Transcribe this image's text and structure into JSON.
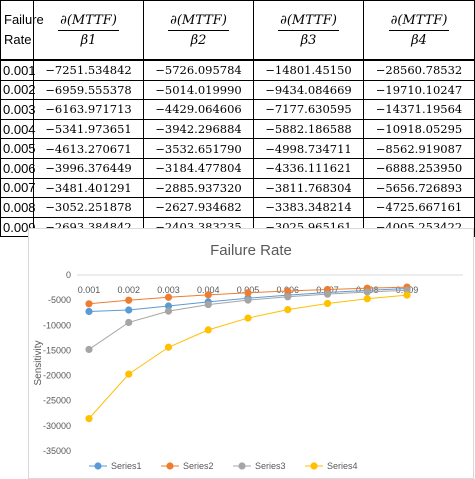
{
  "table": {
    "headers": {
      "rate_line1": "Failure",
      "rate_line2": "Rate",
      "sens": [
        {
          "numerator": "∂(MTTF)",
          "denominator": "β1"
        },
        {
          "numerator": "∂(MTTF)",
          "denominator": "β2"
        },
        {
          "numerator": "∂(MTTF)",
          "denominator": "β3"
        },
        {
          "numerator": "∂(MTTF)",
          "denominator": "β4"
        }
      ]
    },
    "rows": [
      [
        "0.001",
        "−7251.534842",
        "−5726.095784",
        "−14801.45150",
        "−28560.78532"
      ],
      [
        "0.002",
        "−6959.555378",
        "−5014.019990",
        "−9434.084669",
        "−19710.10247"
      ],
      [
        "0.003",
        "−6163.971713",
        "−4429.064606",
        "−7177.630595",
        "−14371.19564"
      ],
      [
        "0.004",
        "−5341.973651",
        "−3942.296884",
        "−5882.186588",
        "−10918.05295"
      ],
      [
        "0.005",
        "−4613.270671",
        "−3532.651790",
        "−4998.734711",
        "−8562.919087"
      ],
      [
        "0.006",
        "−3996.376449",
        "−3184.477804",
        "−4336.111621",
        "−6888.253950"
      ],
      [
        "0.007",
        "−3481.401291",
        "−2885.937320",
        "−3811.768304",
        "−5656.726893"
      ],
      [
        "0.008",
        "−3052.251878",
        "−2627.934682",
        "−3383.348214",
        "−4725.667161"
      ],
      [
        "0.009",
        "−2693.384842",
        "−2403.383235",
        "−3025.965161",
        "−4005.253422"
      ]
    ]
  },
  "chart_data": {
    "type": "line",
    "title": "Failure Rate",
    "xlabel": "",
    "ylabel": "Sensitivity",
    "categories": [
      "0.001",
      "0.002",
      "0.003",
      "0.004",
      "0.005",
      "0.006",
      "0.007",
      "0.008",
      "0.009"
    ],
    "series": [
      {
        "name": "Series1",
        "color": "#5b9bd5",
        "values": [
          -7251.534842,
          -6959.555378,
          -6163.971713,
          -5341.973651,
          -4613.270671,
          -3996.376449,
          -3481.401291,
          -3052.251878,
          -2693.384842
        ]
      },
      {
        "name": "Series2",
        "color": "#ed7d31",
        "values": [
          -5726.095784,
          -5014.01999,
          -4429.064606,
          -3942.296884,
          -3532.65179,
          -3184.477804,
          -2885.93732,
          -2627.934682,
          -2403.383235
        ]
      },
      {
        "name": "Series3",
        "color": "#a5a5a5",
        "values": [
          -14801.4515,
          -9434.084669,
          -7177.630595,
          -5882.186588,
          -4998.734711,
          -4336.111621,
          -3811.768304,
          -3383.348214,
          -3025.965161
        ]
      },
      {
        "name": "Series4",
        "color": "#ffc000",
        "values": [
          -28560.78532,
          -19710.10247,
          -14371.19564,
          -10918.05295,
          -8562.919087,
          -6888.25395,
          -5656.726893,
          -4725.667161,
          -4005.253422
        ]
      }
    ],
    "yticks": [
      "0",
      "-5000",
      "-10000",
      "-15000",
      "-20000",
      "-25000",
      "-30000",
      "-35000"
    ],
    "ylim": [
      -35000,
      0
    ],
    "grid": false,
    "legend": "bottom"
  }
}
